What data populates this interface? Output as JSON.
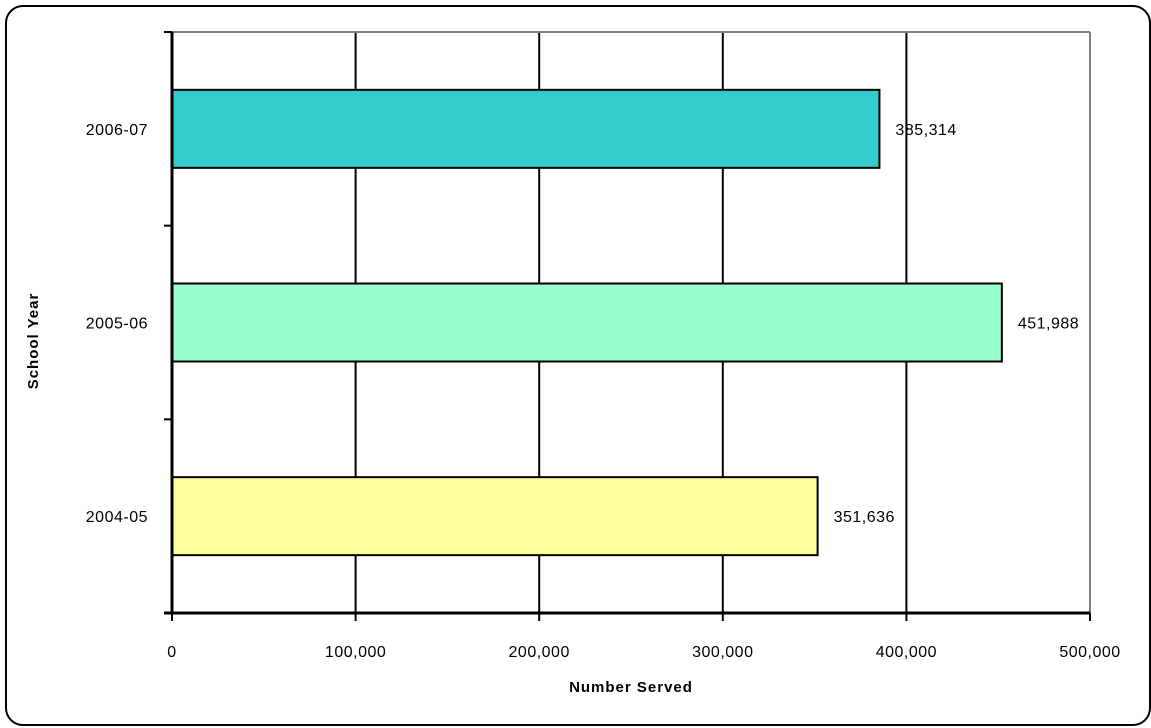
{
  "chart_data": {
    "type": "bar",
    "orientation": "horizontal",
    "title": "",
    "xlabel": "Number Served",
    "ylabel": "School Year",
    "categories": [
      "2006-07",
      "2005-06",
      "2004-05"
    ],
    "values": [
      385314,
      451988,
      351636
    ],
    "value_labels": [
      "385,314",
      "451,988",
      "351,636"
    ],
    "bar_colors": [
      "#33CCCC",
      "#99FFCC",
      "#FFFF99"
    ],
    "xlim": [
      0,
      500000
    ],
    "x_ticks": [
      0,
      100000,
      200000,
      300000,
      400000,
      500000
    ],
    "x_tick_labels": [
      "0",
      "100,000",
      "200,000",
      "300,000",
      "400,000",
      "500,000"
    ],
    "grid": true,
    "legend": "none"
  }
}
